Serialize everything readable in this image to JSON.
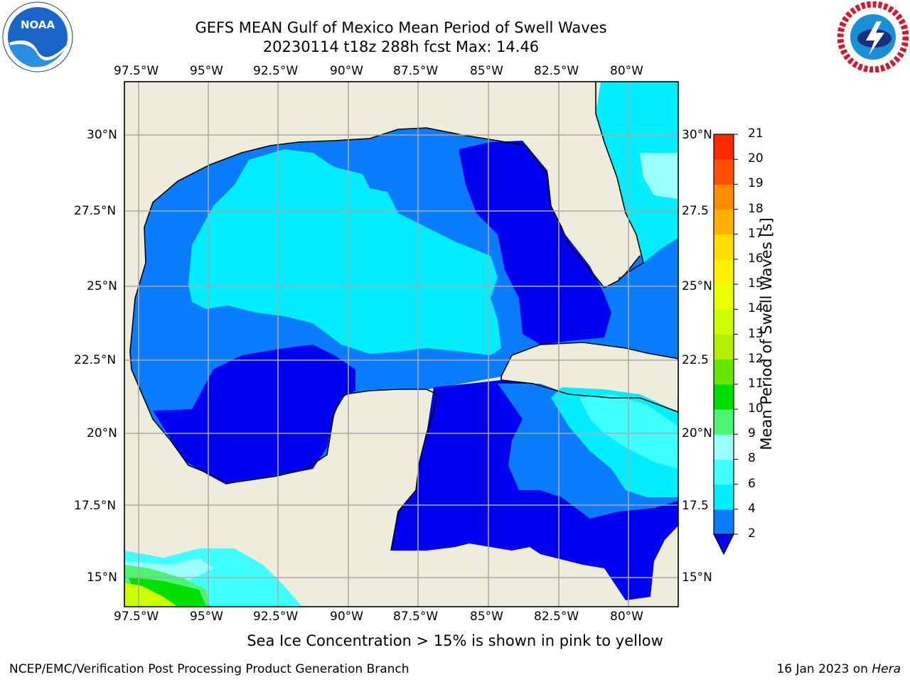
{
  "header": {
    "title_line1": "GEFS MEAN Gulf of Mexico Mean Period of Swell Waves",
    "title_line2": "20230114 t18z 288h fcst   Max: 14.46"
  },
  "logos": {
    "left": {
      "icon": "noaa-logo",
      "text": "NOAA"
    },
    "right": {
      "icon": "national-weather-service-logo"
    }
  },
  "map": {
    "lon_labels": [
      "97.5°W",
      "95°W",
      "92.5°W",
      "90°W",
      "87.5°W",
      "85°W",
      "82.5°W",
      "80°W"
    ],
    "lat_labels": [
      "30°N",
      "27.5°N",
      "25°N",
      "22.5°N",
      "20°N",
      "17.5°N",
      "15°N"
    ],
    "right_lat_labels": [
      "30°N",
      "27.5",
      "25°N",
      "22.5",
      "20°N",
      "17.5",
      "15°N"
    ],
    "colors": {
      "land": "#eeeddb",
      "ocean_deep": "#0000f0",
      "ocean_mid": "#0a7cff",
      "ocean_light": "#00eeff",
      "ocean_pale": "#40ffff",
      "grid": "#aaaaaa"
    }
  },
  "colorbar": {
    "label": "Mean Period of Swell Waves [s]",
    "ticks": [
      "2",
      "4",
      "6",
      "8",
      "9",
      "10",
      "11",
      "12",
      "13",
      "14",
      "15",
      "16",
      "17",
      "18",
      "19",
      "20",
      "21"
    ],
    "colors": [
      "#0a7cff",
      "#00eeff",
      "#40ffff",
      "#99ffff",
      "#4cf571",
      "#00e000",
      "#66e600",
      "#b3f000",
      "#ccff00",
      "#eaff00",
      "#fff000",
      "#ffdd00",
      "#ffb000",
      "#ff8c00",
      "#ff5000",
      "#ff2a00",
      "#ff0000"
    ]
  },
  "footer": {
    "note": "Sea Ice Concentration > 15% is shown in pink to yellow",
    "credit": "NCEP/EMC/Verification Post Processing Product Generation Branch",
    "date": "16 Jan 2023 on ",
    "host": "Hera"
  }
}
